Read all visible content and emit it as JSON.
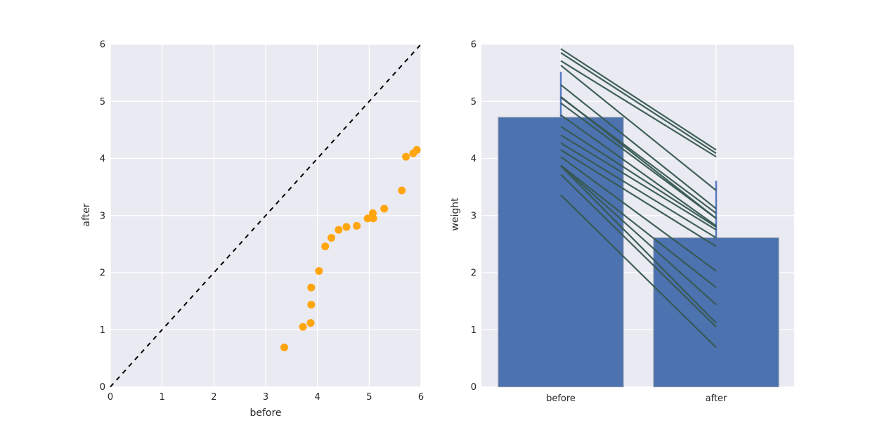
{
  "figure": {
    "background": "#ffffff",
    "plot_background": "#eaeaf2",
    "grid_color": "#ffffff",
    "text_color": "#262626"
  },
  "chart_data": [
    {
      "type": "scatter",
      "title": "",
      "xlabel": "before",
      "ylabel": "after",
      "xlim": [
        0,
        6
      ],
      "ylim": [
        0,
        6
      ],
      "xticks": [
        0,
        1,
        2,
        3,
        4,
        5,
        6
      ],
      "yticks": [
        0,
        1,
        2,
        3,
        4,
        5,
        6
      ],
      "grid": true,
      "legend": "none",
      "marker_color": "#ffa50e",
      "identity_line": {
        "style": "dashed",
        "color": "#000000",
        "from": [
          0,
          0
        ],
        "to": [
          6,
          6
        ]
      },
      "points": [
        [
          3.36,
          0.69
        ],
        [
          3.72,
          1.05
        ],
        [
          3.87,
          1.12
        ],
        [
          3.88,
          1.44
        ],
        [
          3.88,
          1.74
        ],
        [
          4.03,
          2.03
        ],
        [
          4.15,
          2.46
        ],
        [
          4.27,
          2.61
        ],
        [
          4.41,
          2.75
        ],
        [
          4.56,
          2.8
        ],
        [
          4.76,
          2.82
        ],
        [
          4.97,
          2.95
        ],
        [
          5.07,
          3.04
        ],
        [
          5.08,
          2.95
        ],
        [
          5.29,
          3.12
        ],
        [
          5.63,
          3.44
        ],
        [
          5.71,
          4.03
        ],
        [
          5.85,
          4.09
        ],
        [
          5.92,
          4.15
        ]
      ]
    },
    {
      "type": "bar",
      "title": "",
      "xlabel": "",
      "ylabel": "weight",
      "categories": [
        "before",
        "after"
      ],
      "values": [
        4.72,
        2.61
      ],
      "ylim": [
        0,
        6
      ],
      "yticks": [
        0,
        1,
        2,
        3,
        4,
        5,
        6
      ],
      "grid": true,
      "legend": "none",
      "bar_color": "#4c72b0",
      "bar_edge_color": "#8b95a5",
      "error_color": "#567bc2",
      "error_high": [
        5.52,
        3.61
      ],
      "pair_lines": {
        "color": "#365950",
        "pairs": [
          [
            3.36,
            0.69
          ],
          [
            3.72,
            1.05
          ],
          [
            3.87,
            1.12
          ],
          [
            3.88,
            1.44
          ],
          [
            3.88,
            1.74
          ],
          [
            4.03,
            2.03
          ],
          [
            4.15,
            2.46
          ],
          [
            4.27,
            2.61
          ],
          [
            4.41,
            2.75
          ],
          [
            4.56,
            2.8
          ],
          [
            4.76,
            2.82
          ],
          [
            4.97,
            2.95
          ],
          [
            5.07,
            3.04
          ],
          [
            5.08,
            2.95
          ],
          [
            5.29,
            3.12
          ],
          [
            5.63,
            3.44
          ],
          [
            5.71,
            4.03
          ],
          [
            5.85,
            4.09
          ],
          [
            5.92,
            4.15
          ]
        ]
      }
    }
  ]
}
